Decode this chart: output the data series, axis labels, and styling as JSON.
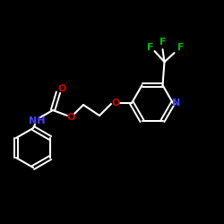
{
  "background_color": "#000000",
  "bond_color": "#ffffff",
  "atom_colors": {
    "N": "#4444ff",
    "O": "#cc0000",
    "F": "#00bb00",
    "C": "#ffffff",
    "H": "#ffffff"
  },
  "figsize": [
    2.5,
    2.5
  ],
  "dpi": 100
}
